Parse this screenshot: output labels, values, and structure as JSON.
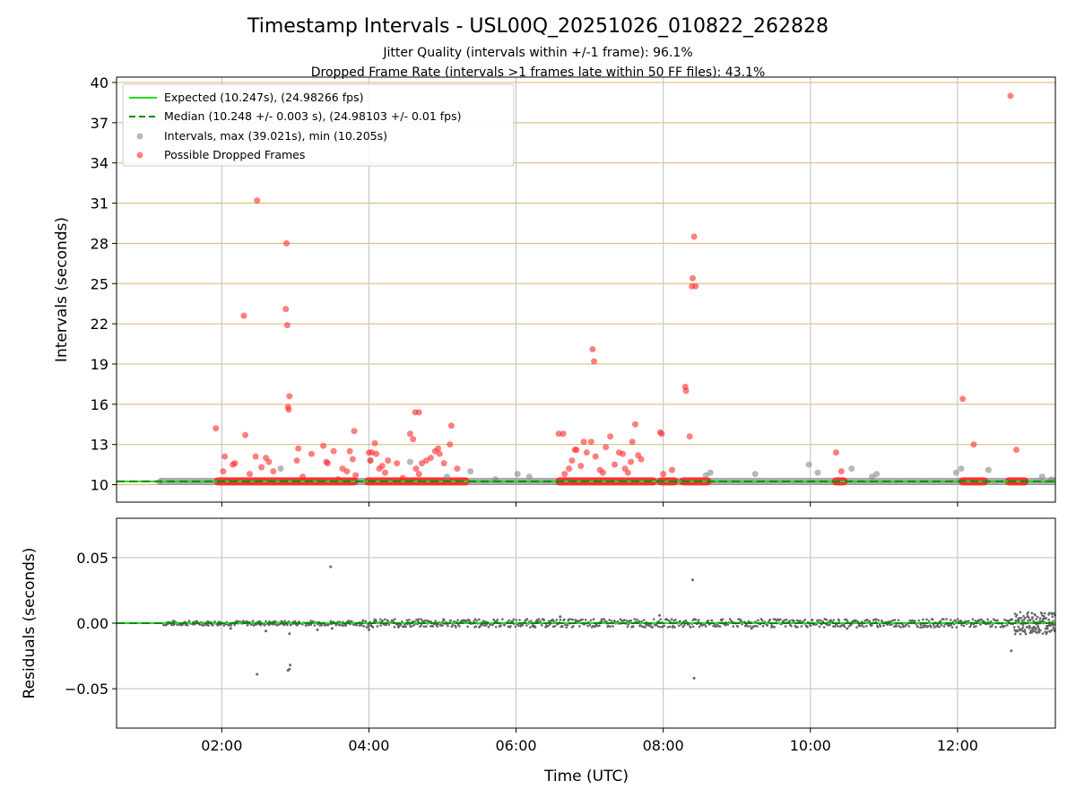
{
  "chart_data": {
    "type": "scatter",
    "title": "Timestamp Intervals - USL00Q_20251026_010822_262828",
    "subtitle_lines": [
      "Jitter Quality (intervals within +/-1 frame): 96.1%",
      "Dropped Frame Rate (intervals >1 frames late within 50 FF files): 43.1%"
    ],
    "xlabel": "Time (UTC)",
    "x_tick_labels": [
      "02:00",
      "04:00",
      "06:00",
      "08:00",
      "10:00",
      "12:00"
    ],
    "x_ticks_hours": [
      2,
      4,
      6,
      8,
      10,
      12
    ],
    "xlim_hours": [
      0.57,
      13.33
    ],
    "panels": {
      "top": {
        "ylabel": "Intervals (seconds)",
        "ylim": [
          8.7,
          40.4
        ],
        "yticks": [
          10,
          13,
          16,
          19,
          22,
          25,
          28,
          31,
          34,
          37,
          40
        ],
        "expected_interval": 10.247,
        "median_interval": 10.248,
        "legend": [
          {
            "name": "Expected (10.247s), (24.98266 fps)",
            "style": "solid-line",
            "color": "#22dd22"
          },
          {
            "name": "Median (10.248 +/- 0.003 s), (24.98103 +/- 0.01 fps)",
            "style": "dashed-line",
            "color": "#118811"
          },
          {
            "name": "Intervals, max (39.021s), min (10.205s)",
            "style": "marker",
            "color": "#888888"
          },
          {
            "name": "Possible Dropped Frames",
            "style": "marker",
            "color": "#ff2a2a"
          }
        ],
        "max_interval": 39.021,
        "min_interval": 10.205,
        "dense_red_segments_hours": [
          [
            1.93,
            3.82
          ],
          [
            3.97,
            5.33
          ],
          [
            6.57,
            7.88
          ],
          [
            7.95,
            8.17
          ],
          [
            8.25,
            8.62
          ],
          [
            10.33,
            10.47
          ],
          [
            12.05,
            12.38
          ],
          [
            12.68,
            12.93
          ]
        ],
        "dropped_frames": [
          [
            1.92,
            14.2
          ],
          [
            2.04,
            12.1
          ],
          [
            2.02,
            11.0
          ],
          [
            2.15,
            11.5
          ],
          [
            2.18,
            11.6
          ],
          [
            2.3,
            22.6
          ],
          [
            2.32,
            13.7
          ],
          [
            2.38,
            10.8
          ],
          [
            2.46,
            12.1
          ],
          [
            2.48,
            31.2
          ],
          [
            2.54,
            11.3
          ],
          [
            2.6,
            12.0
          ],
          [
            2.64,
            11.7
          ],
          [
            2.7,
            11.0
          ],
          [
            2.88,
            28.0
          ],
          [
            2.87,
            23.1
          ],
          [
            2.89,
            21.9
          ],
          [
            2.9,
            15.8
          ],
          [
            2.91,
            15.6
          ],
          [
            2.92,
            16.6
          ],
          [
            3.02,
            11.8
          ],
          [
            3.04,
            12.7
          ],
          [
            3.1,
            10.6
          ],
          [
            3.22,
            12.3
          ],
          [
            3.38,
            12.9
          ],
          [
            3.42,
            11.7
          ],
          [
            3.44,
            11.6
          ],
          [
            3.52,
            12.5
          ],
          [
            3.58,
            10.4
          ],
          [
            3.64,
            11.2
          ],
          [
            3.7,
            11.0
          ],
          [
            3.74,
            12.5
          ],
          [
            3.8,
            14.0
          ],
          [
            3.78,
            11.9
          ],
          [
            3.82,
            10.7
          ],
          [
            4.0,
            12.4
          ],
          [
            4.02,
            11.8
          ],
          [
            4.04,
            12.4
          ],
          [
            4.08,
            13.1
          ],
          [
            4.1,
            12.3
          ],
          [
            4.14,
            11.2
          ],
          [
            4.18,
            11.4
          ],
          [
            4.22,
            10.9
          ],
          [
            4.26,
            11.8
          ],
          [
            4.38,
            11.6
          ],
          [
            4.46,
            10.5
          ],
          [
            4.56,
            13.8
          ],
          [
            4.6,
            13.4
          ],
          [
            4.63,
            15.4
          ],
          [
            4.68,
            15.4
          ],
          [
            4.64,
            11.2
          ],
          [
            4.68,
            10.8
          ],
          [
            4.72,
            11.6
          ],
          [
            4.78,
            11.8
          ],
          [
            4.84,
            12.0
          ],
          [
            4.9,
            12.5
          ],
          [
            4.94,
            12.7
          ],
          [
            4.96,
            12.3
          ],
          [
            5.02,
            11.6
          ],
          [
            5.1,
            13.0
          ],
          [
            5.12,
            14.4
          ],
          [
            5.2,
            11.2
          ],
          [
            6.58,
            13.8
          ],
          [
            6.64,
            13.8
          ],
          [
            6.66,
            10.8
          ],
          [
            6.72,
            11.2
          ],
          [
            6.76,
            11.8
          ],
          [
            6.8,
            12.6
          ],
          [
            6.82,
            12.6
          ],
          [
            6.88,
            11.4
          ],
          [
            6.92,
            13.2
          ],
          [
            6.96,
            12.4
          ],
          [
            7.02,
            13.2
          ],
          [
            7.04,
            20.1
          ],
          [
            7.06,
            19.2
          ],
          [
            7.08,
            12.1
          ],
          [
            7.14,
            11.1
          ],
          [
            7.18,
            10.9
          ],
          [
            7.22,
            12.8
          ],
          [
            7.28,
            13.6
          ],
          [
            7.34,
            11.5
          ],
          [
            7.4,
            12.4
          ],
          [
            7.45,
            12.3
          ],
          [
            7.48,
            11.2
          ],
          [
            7.52,
            10.9
          ],
          [
            7.56,
            11.7
          ],
          [
            7.58,
            13.2
          ],
          [
            7.62,
            14.5
          ],
          [
            7.66,
            12.2
          ],
          [
            7.7,
            11.9
          ],
          [
            7.96,
            13.9
          ],
          [
            7.98,
            13.8
          ],
          [
            8.0,
            10.8
          ],
          [
            8.12,
            11.1
          ],
          [
            8.3,
            17.3
          ],
          [
            8.31,
            17.0
          ],
          [
            8.36,
            13.6
          ],
          [
            8.4,
            25.4
          ],
          [
            8.39,
            24.8
          ],
          [
            8.44,
            24.8
          ],
          [
            8.42,
            28.5
          ],
          [
            10.35,
            12.4
          ],
          [
            10.42,
            11.0
          ],
          [
            12.07,
            16.4
          ],
          [
            12.22,
            13.0
          ],
          [
            12.8,
            12.6
          ],
          [
            12.72,
            39.0
          ]
        ],
        "gray_intervals": [
          [
            1.15,
            10.2
          ],
          [
            2.8,
            11.2
          ],
          [
            4.02,
            11.8
          ],
          [
            4.56,
            11.7
          ],
          [
            5.06,
            10.6
          ],
          [
            5.38,
            11.0
          ],
          [
            5.72,
            10.4
          ],
          [
            6.02,
            10.8
          ],
          [
            6.18,
            10.6
          ],
          [
            8.64,
            10.9
          ],
          [
            8.58,
            10.7
          ],
          [
            9.25,
            10.8
          ],
          [
            9.98,
            11.5
          ],
          [
            10.1,
            10.9
          ],
          [
            10.56,
            11.2
          ],
          [
            10.84,
            10.6
          ],
          [
            10.9,
            10.8
          ],
          [
            11.98,
            10.9
          ],
          [
            12.05,
            11.2
          ],
          [
            12.42,
            11.1
          ],
          [
            13.15,
            10.6
          ],
          [
            13.28,
            10.4
          ]
        ]
      },
      "bottom": {
        "ylabel": "Residuals (seconds)",
        "ylim": [
          -0.08,
          0.08
        ],
        "yticks": [
          0.05,
          0.0,
          -0.05
        ],
        "ytick_labels": [
          "0.05",
          "0.00",
          "−0.05"
        ],
        "noise_band_hours": [
          1.2,
          13.33
        ],
        "outliers": [
          [
            3.48,
            0.043
          ],
          [
            8.4,
            0.033
          ],
          [
            2.48,
            -0.039
          ],
          [
            2.9,
            -0.036
          ],
          [
            2.92,
            -0.035
          ],
          [
            2.93,
            -0.032
          ],
          [
            8.42,
            -0.042
          ],
          [
            12.73,
            -0.021
          ],
          [
            2.12,
            -0.004
          ],
          [
            2.6,
            -0.006
          ],
          [
            2.92,
            -0.008
          ],
          [
            3.3,
            -0.005
          ],
          [
            3.5,
            -0.004
          ],
          [
            4.0,
            -0.005
          ],
          [
            4.4,
            -0.003
          ],
          [
            5.5,
            -0.003
          ],
          [
            6.6,
            0.005
          ],
          [
            7.95,
            0.006
          ],
          [
            9.2,
            -0.004
          ],
          [
            10.5,
            -0.004
          ]
        ]
      }
    }
  },
  "colors": {
    "expected": "#22dd22",
    "median": "#118811",
    "interval_marker": "#888888",
    "dropped_marker": "#ff2a2a",
    "h_grid": "#d8b86a",
    "v_grid": "#c8c8c8",
    "residual_dot": "#666666"
  }
}
